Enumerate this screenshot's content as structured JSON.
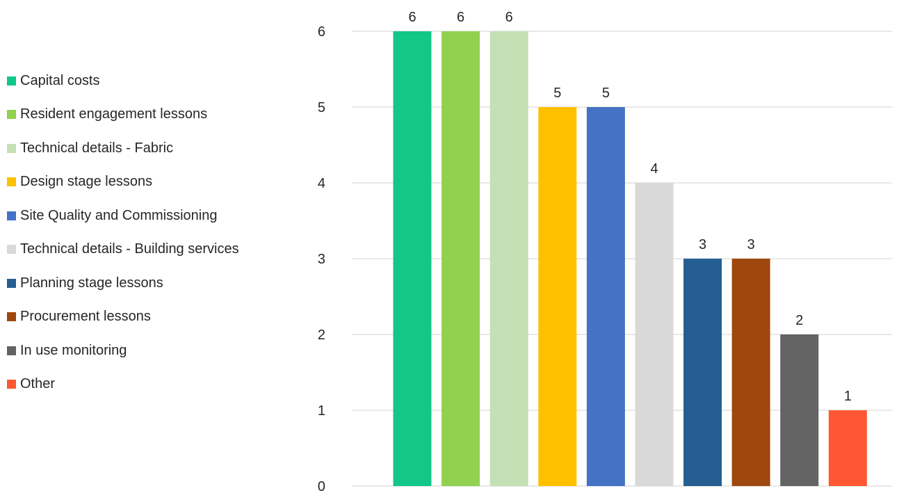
{
  "chart_data": {
    "type": "bar",
    "title": "",
    "xlabel": "",
    "ylabel": "",
    "ylim": [
      0,
      6
    ],
    "yticks": [
      0,
      1,
      2,
      3,
      4,
      5,
      6
    ],
    "grid": true,
    "legend_position": "left",
    "categories": [
      "Capital costs",
      "Resident engagement lessons",
      "Technical details - Fabric",
      "Design stage lessons",
      "Site Quality and Commissioning",
      "Technical details - Building services",
      "Planning stage lessons",
      "Procurement lessons",
      "In use monitoring",
      "Other"
    ],
    "values": [
      6,
      6,
      6,
      5,
      5,
      4,
      3,
      3,
      2,
      1
    ],
    "colors": [
      "#12C788",
      "#92D050",
      "#C5E0B4",
      "#FFC000",
      "#4472C4",
      "#D9D9D9",
      "#255E91",
      "#9E480E",
      "#636363",
      "#FF5733"
    ]
  }
}
